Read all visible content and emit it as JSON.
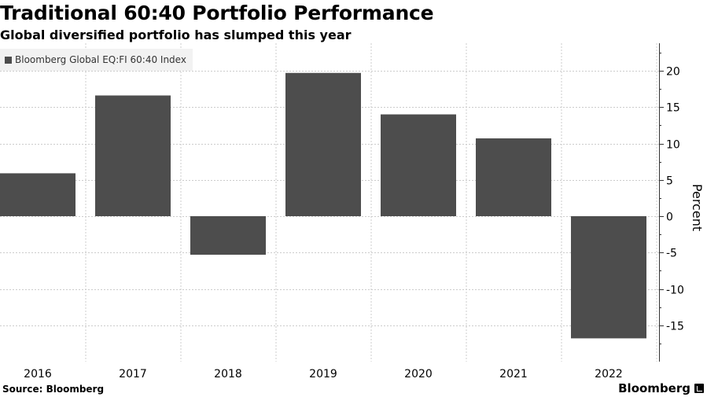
{
  "title": "Traditional 60:40 Portfolio Performance",
  "subtitle": "Global diversified portfolio has slumped this year",
  "legend": {
    "label": "Bloomberg Global EQ:FI 60:40 Index"
  },
  "source": "Source: Bloomberg",
  "brand": "Bloomberg",
  "colors": {
    "bar": "#4d4d4d",
    "grid": "#cccccc",
    "axis": "#333333"
  },
  "chart_data": {
    "type": "bar",
    "title": "Traditional 60:40 Portfolio Performance",
    "subtitle": "Global diversified portfolio has slumped this year",
    "categories": [
      "2016",
      "2017",
      "2018",
      "2019",
      "2020",
      "2021",
      "2022"
    ],
    "series": [
      {
        "name": "Bloomberg Global EQ:FI 60:40 Index",
        "values": [
          5.9,
          16.6,
          -5.3,
          19.7,
          14.0,
          10.7,
          -16.8
        ]
      }
    ],
    "xlabel": "",
    "ylabel": "Percent",
    "ylim": [
      -20,
      23
    ],
    "yticks": [
      -15,
      -10,
      -5,
      0,
      5,
      10,
      15,
      20
    ],
    "ytick_labels": [
      "-15",
      "-10",
      "-5",
      "0",
      "5",
      "10",
      "15",
      "20"
    ],
    "grid": true,
    "legend_position": "top-left"
  }
}
